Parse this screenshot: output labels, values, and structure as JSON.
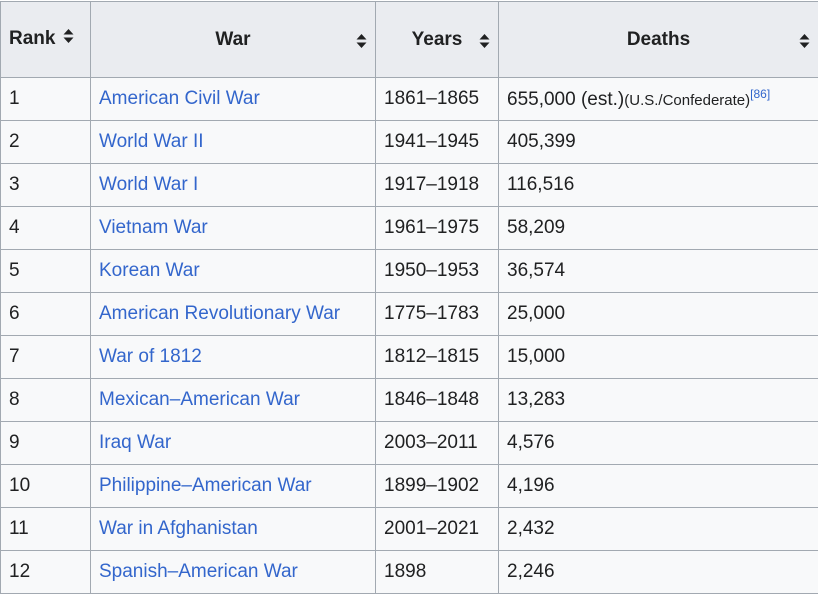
{
  "table": {
    "headers": [
      "Rank",
      "War",
      "Years",
      "Deaths"
    ],
    "rows": [
      {
        "rank": "1",
        "war": "American Civil War",
        "years": "1861–1865",
        "deaths": "655,000 (est.)",
        "note": "(U.S./Confederate)",
        "ref": "[86]"
      },
      {
        "rank": "2",
        "war": "World War II",
        "years": "1941–1945",
        "deaths": "405,399"
      },
      {
        "rank": "3",
        "war": "World War I",
        "years": "1917–1918",
        "deaths": "116,516"
      },
      {
        "rank": "4",
        "war": "Vietnam War",
        "years": "1961–1975",
        "deaths": "58,209"
      },
      {
        "rank": "5",
        "war": "Korean War",
        "years": "1950–1953",
        "deaths": "36,574"
      },
      {
        "rank": "6",
        "war": "American Revolutionary War",
        "years": "1775–1783",
        "deaths": "25,000"
      },
      {
        "rank": "7",
        "war": "War of 1812",
        "years": "1812–1815",
        "deaths": "15,000"
      },
      {
        "rank": "8",
        "war": "Mexican–American War",
        "years": "1846–1848",
        "deaths": "13,283"
      },
      {
        "rank": "9",
        "war": "Iraq War",
        "years": "2003–2011",
        "deaths": "4,576"
      },
      {
        "rank": "10",
        "war": "Philippine–American War",
        "years": "1899–1902",
        "deaths": "4,196"
      },
      {
        "rank": "11",
        "war": "War in Afghanistan",
        "years": "2001–2021",
        "deaths": "2,432"
      },
      {
        "rank": "12",
        "war": "Spanish–American War",
        "years": "1898",
        "deaths": "2,246"
      }
    ]
  }
}
